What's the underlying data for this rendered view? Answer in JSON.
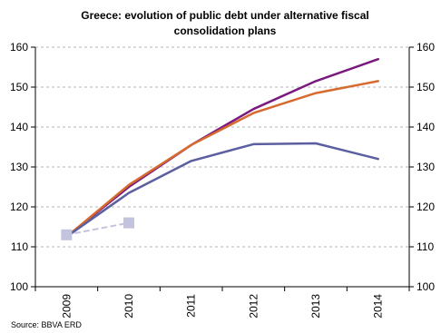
{
  "chart_data": {
    "type": "line",
    "title_lines": [
      "Greece: evolution of public debt under alternative fiscal",
      "consolidation plans"
    ],
    "source": "Source: BBVA ERD",
    "x": [
      "2009",
      "2010",
      "2011",
      "2012",
      "2013",
      "2014"
    ],
    "ylim": [
      100,
      160
    ],
    "yticks": [
      "100",
      "110",
      "120",
      "130",
      "140",
      "150",
      "160"
    ],
    "grid": true,
    "grid_style": "dashed",
    "dual_y_axis": true,
    "legend": "none",
    "series": [
      {
        "color": "#7b1a7e",
        "values": [
          112.5,
          125,
          135.5,
          144.5,
          151.5,
          157
        ],
        "style": "solid"
      },
      {
        "color": "#d76b2f",
        "values": [
          112.5,
          125.5,
          135.5,
          143.5,
          148.5,
          151.5
        ],
        "style": "solid"
      },
      {
        "color": "#5b5f9f",
        "values": [
          112.5,
          123.5,
          131.5,
          135.7,
          135.9,
          132
        ],
        "style": "solid"
      },
      {
        "color": "#c3c3de",
        "values": [
          113,
          116
        ],
        "x": [
          "2009",
          "2010"
        ],
        "style": "dashed",
        "markers": "square"
      }
    ]
  }
}
